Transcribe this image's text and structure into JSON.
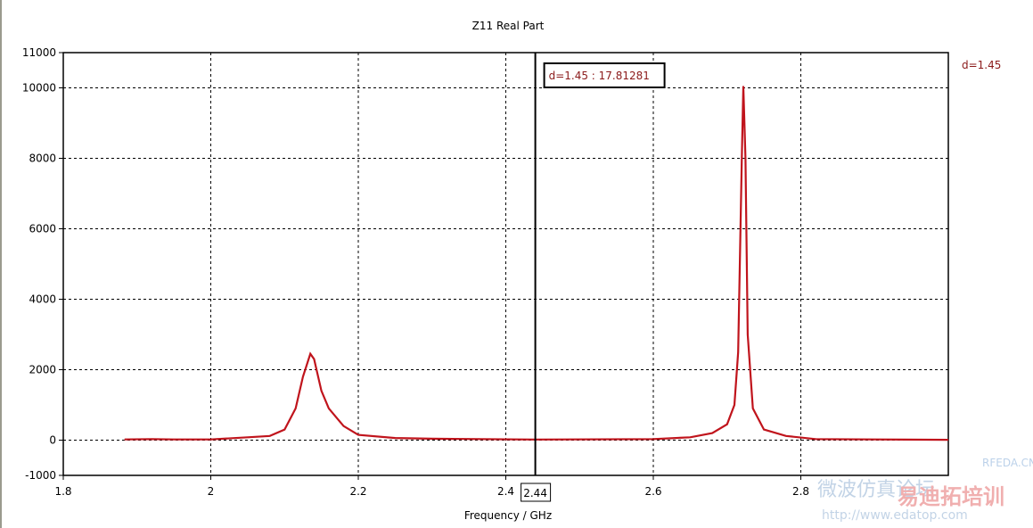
{
  "chart_data": {
    "type": "line",
    "title": "Z11 Real Part",
    "xlabel": "Frequency / GHz",
    "ylabel": "",
    "xlim": [
      1.8,
      3.0
    ],
    "ylim": [
      -1000,
      11000
    ],
    "xticks": [
      1.8,
      2,
      2.2,
      2.4,
      2.6,
      2.8
    ],
    "xtick_labels": [
      "1.8",
      "2",
      "2.2",
      "2.4",
      "2.6",
      "2.8"
    ],
    "yticks": [
      -1000,
      0,
      2000,
      4000,
      6000,
      8000,
      10000,
      11000
    ],
    "ytick_labels": [
      "-1000",
      "0",
      "2000",
      "4000",
      "6000",
      "8000",
      "10000",
      "11000"
    ],
    "grid": true,
    "legend": {
      "placement": "top-right",
      "entries": [
        "d=1.45"
      ]
    },
    "series": [
      {
        "name": "d=1.45",
        "color": "#c0141c",
        "x": [
          1.883,
          1.92,
          1.95,
          2.0,
          2.05,
          2.08,
          2.1,
          2.115,
          2.125,
          2.135,
          2.14,
          2.15,
          2.16,
          2.18,
          2.2,
          2.25,
          2.3,
          2.44,
          2.6,
          2.65,
          2.68,
          2.7,
          2.71,
          2.715,
          2.72,
          2.722,
          2.725,
          2.728,
          2.735,
          2.75,
          2.78,
          2.82,
          2.9,
          3.0
        ],
        "y": [
          20,
          30,
          20,
          20,
          80,
          120,
          300,
          900,
          1800,
          2450,
          2300,
          1400,
          900,
          400,
          150,
          60,
          40,
          18,
          30,
          80,
          200,
          450,
          1000,
          2500,
          8000,
          10050,
          8000,
          3000,
          900,
          300,
          120,
          30,
          20,
          10
        ]
      }
    ],
    "marker": {
      "x": 2.44,
      "x_label": "2.44",
      "annotation": "d=1.45 : 17.81281"
    }
  },
  "watermark": [
    "RFEDA.CN",
    "微波仿真论坛",
    "易迪拓培训",
    "http://www.edatop.com"
  ]
}
